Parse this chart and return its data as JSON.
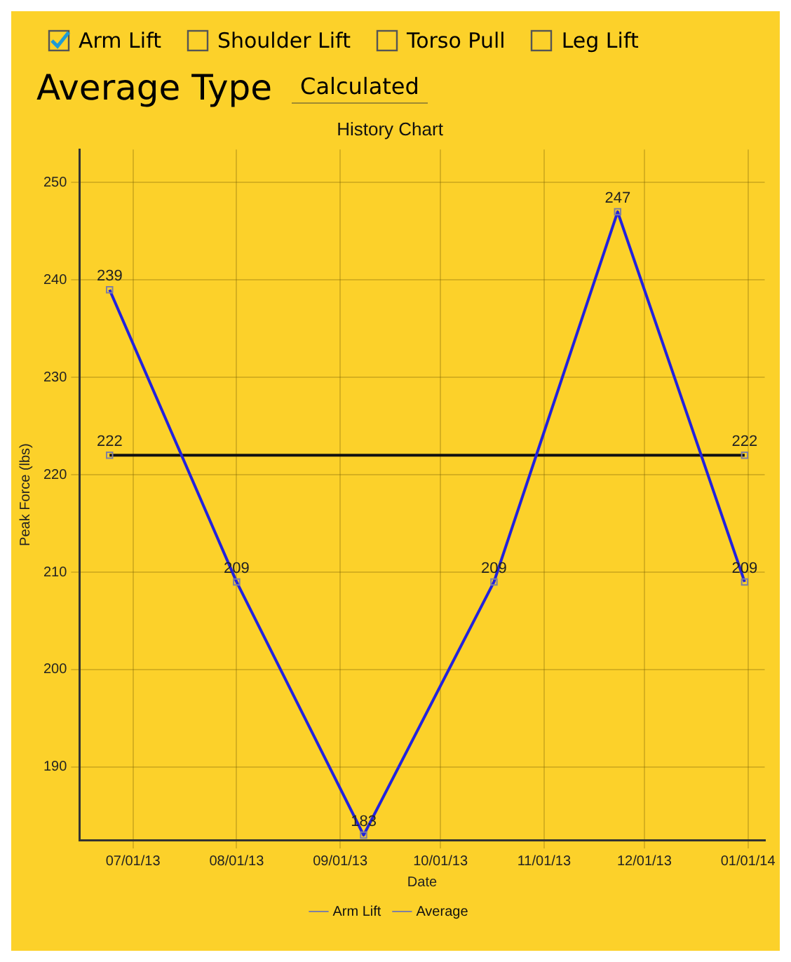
{
  "chart_data": {
    "type": "line",
    "title": "History Chart",
    "xlabel": "Date",
    "ylabel": "Peak Force (lbs)",
    "annotations": [
      "Arm Lift",
      "Shoulder Lift",
      "Torso Pull",
      "Leg Lift",
      "Average Type",
      "Calculated"
    ],
    "x": [
      "2013-06-24",
      "2013-08-01",
      "2013-09-08",
      "2013-10-17",
      "2013-11-23",
      "2013-12-31"
    ],
    "series": [
      {
        "name": "Arm Lift",
        "color": "#2222dd",
        "values": [
          239,
          209,
          183,
          209,
          247,
          209
        ]
      },
      {
        "name": "Average",
        "color": "#111111",
        "x": [
          "2013-06-24",
          "2013-12-31"
        ],
        "values": [
          222,
          222
        ]
      }
    ],
    "xlim": [
      "2013-06-15",
      "2014-01-06"
    ],
    "xticks": [
      {
        "value": "2013-07-01",
        "label": "07/01/13"
      },
      {
        "value": "2013-08-01",
        "label": "08/01/13"
      },
      {
        "value": "2013-09-01",
        "label": "09/01/13"
      },
      {
        "value": "2013-10-01",
        "label": "10/01/13"
      },
      {
        "value": "2013-11-01",
        "label": "11/01/13"
      },
      {
        "value": "2013-12-01",
        "label": "12/01/13"
      },
      {
        "value": "2014-01-01",
        "label": "01/01/14"
      }
    ],
    "ylim": [
      182.5,
      253.4
    ],
    "yticks": [
      190,
      200,
      210,
      220,
      230,
      240,
      250
    ],
    "grid": true,
    "legend": "bottom",
    "marker": "square",
    "line_style": "solid",
    "data_labels": true
  }
}
